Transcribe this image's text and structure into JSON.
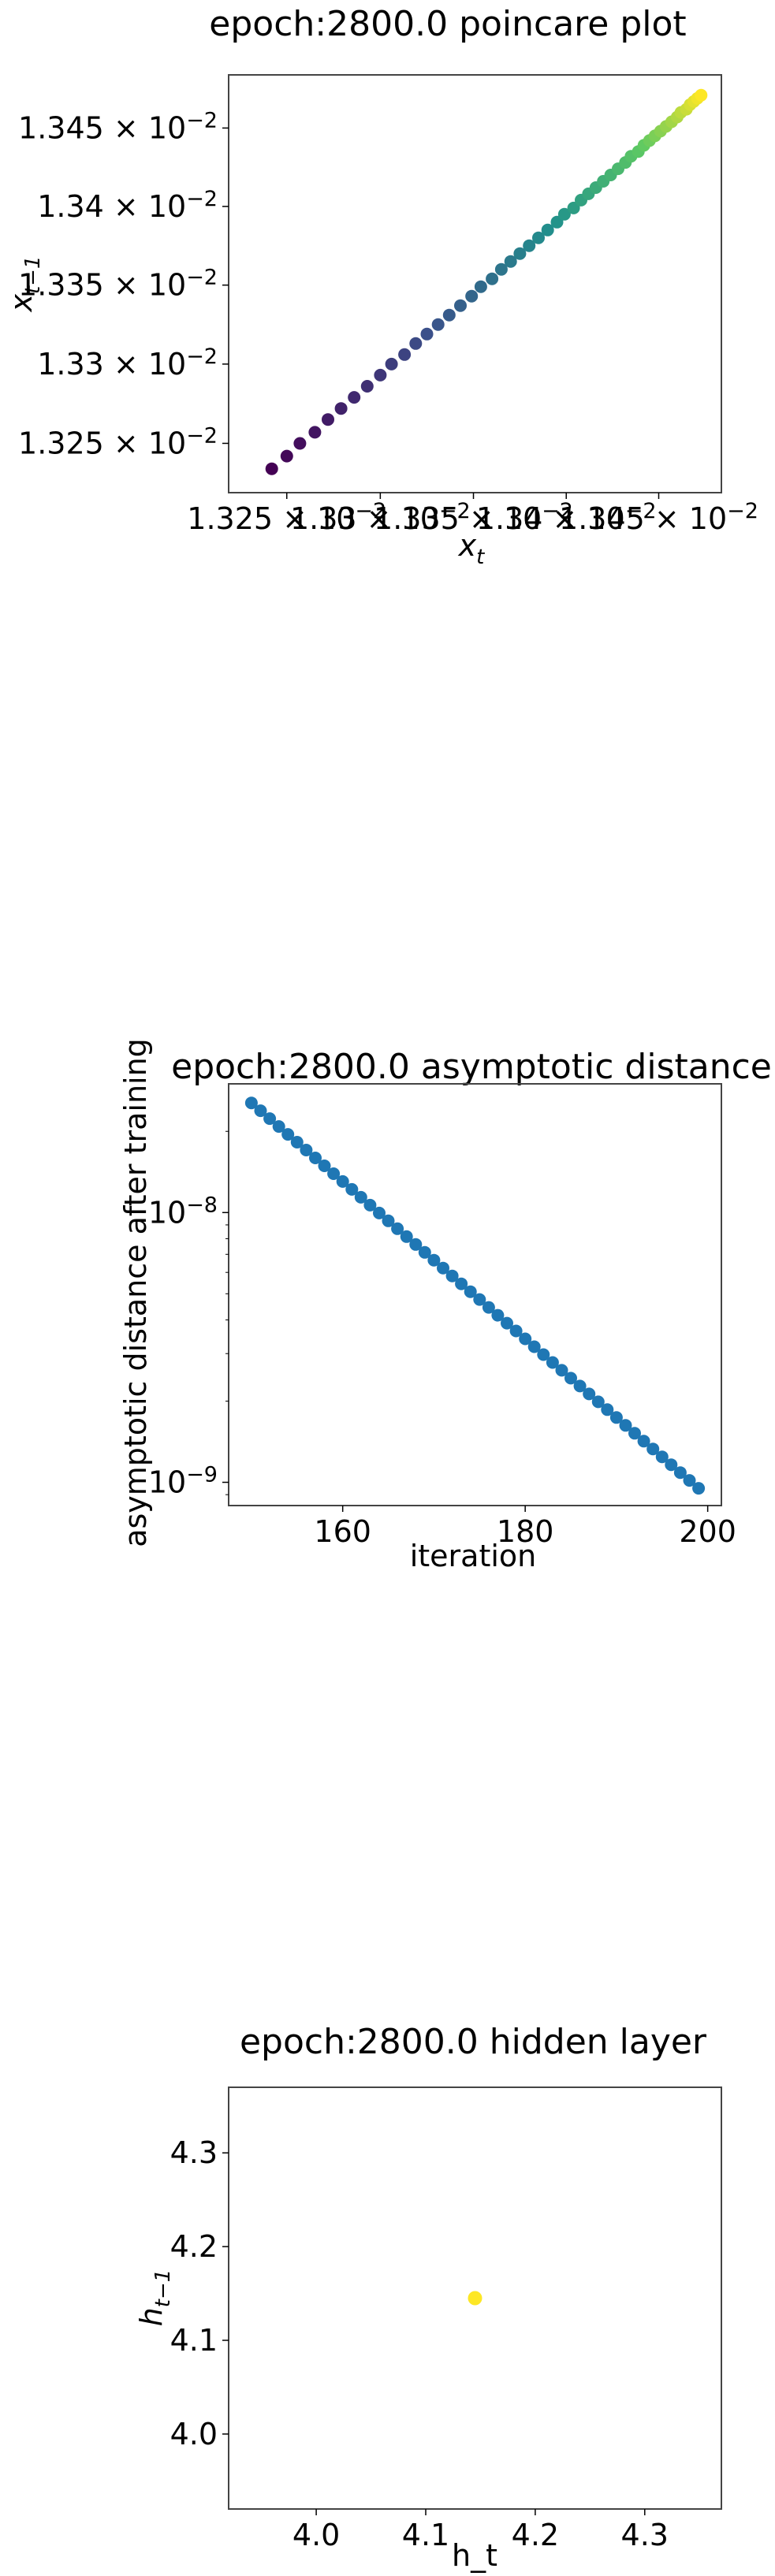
{
  "chart_data": [
    {
      "type": "scatter",
      "title": "epoch:2800.0 poincare plot",
      "xlabel_main": "x",
      "xlabel_sub": "t",
      "ylabel_main": "x",
      "ylabel_sub": "t−1",
      "x_scale": "log",
      "y_scale": "log",
      "xlim": [
        0.013219,
        0.013484
      ],
      "ylim": [
        0.013219,
        0.013484
      ],
      "x_ticks": [
        {
          "value": 0.01325,
          "mantissa": "1.325"
        },
        {
          "value": 0.0133,
          "mantissa": "1.33"
        },
        {
          "value": 0.01335,
          "mantissa": "1.335"
        },
        {
          "value": 0.0134,
          "mantissa": "1.34"
        },
        {
          "value": 0.01345,
          "mantissa": "1.345"
        }
      ],
      "y_ticks": [
        {
          "value": 0.01325,
          "mantissa": "1.325"
        },
        {
          "value": 0.0133,
          "mantissa": "1.33"
        },
        {
          "value": 0.01335,
          "mantissa": "1.335"
        },
        {
          "value": 0.0134,
          "mantissa": "1.34"
        },
        {
          "value": 0.01345,
          "mantissa": "1.345"
        }
      ],
      "tick_times": "×",
      "tick_base": "10",
      "tick_exponent": "−2",
      "colormap": "viridis",
      "grid": false,
      "points": [
        [
          0.013242,
          0.013234
        ],
        [
          0.01325,
          0.013242
        ],
        [
          0.013257,
          0.01325
        ],
        [
          0.013265,
          0.013257
        ],
        [
          0.013272,
          0.013265
        ],
        [
          0.013279,
          0.013272
        ],
        [
          0.013286,
          0.013279
        ],
        [
          0.013293,
          0.013286
        ],
        [
          0.0133,
          0.013293
        ],
        [
          0.013306,
          0.0133
        ],
        [
          0.013313,
          0.013306
        ],
        [
          0.013319,
          0.013313
        ],
        [
          0.013325,
          0.013319
        ],
        [
          0.013331,
          0.013325
        ],
        [
          0.013337,
          0.013331
        ],
        [
          0.013343,
          0.013337
        ],
        [
          0.013349,
          0.013343
        ],
        [
          0.013354,
          0.013349
        ],
        [
          0.01336,
          0.013354
        ],
        [
          0.013365,
          0.01336
        ],
        [
          0.01337,
          0.013365
        ],
        [
          0.013375,
          0.01337
        ],
        [
          0.01338,
          0.013375
        ],
        [
          0.013385,
          0.01338
        ],
        [
          0.01339,
          0.013385
        ],
        [
          0.013395,
          0.01339
        ],
        [
          0.013399,
          0.013395
        ],
        [
          0.013404,
          0.013399
        ],
        [
          0.013408,
          0.013404
        ],
        [
          0.013412,
          0.013408
        ],
        [
          0.013416,
          0.013412
        ],
        [
          0.01342,
          0.013416
        ],
        [
          0.013424,
          0.01342
        ],
        [
          0.013428,
          0.013424
        ],
        [
          0.013432,
          0.013428
        ],
        [
          0.013435,
          0.013432
        ],
        [
          0.013439,
          0.013435
        ],
        [
          0.013442,
          0.013439
        ],
        [
          0.013445,
          0.013442
        ],
        [
          0.013448,
          0.013445
        ],
        [
          0.013451,
          0.013448
        ],
        [
          0.013454,
          0.013451
        ],
        [
          0.013457,
          0.013454
        ],
        [
          0.01346,
          0.013457
        ],
        [
          0.013462,
          0.01346
        ],
        [
          0.013465,
          0.013462
        ],
        [
          0.013467,
          0.013465
        ],
        [
          0.013469,
          0.013467
        ],
        [
          0.013471,
          0.013469
        ],
        [
          0.013473,
          0.013471
        ]
      ]
    },
    {
      "type": "scatter",
      "title": "epoch:2800.0 asymptotic distance",
      "xlabel": "iteration",
      "ylabel": "asymptotic distance after training",
      "x_scale": "linear",
      "y_scale": "log",
      "xlim": [
        147.5,
        201.5
      ],
      "ylim": [
        8.2e-10,
        3e-08
      ],
      "x_ticks": [
        {
          "value": 160,
          "label": "160"
        },
        {
          "value": 180,
          "label": "180"
        },
        {
          "value": 200,
          "label": "200"
        }
      ],
      "y_ticks": [
        {
          "value": 1e-08,
          "base": "10",
          "exponent": "−8"
        },
        {
          "value": 1e-09,
          "base": "10",
          "exponent": "−9"
        }
      ],
      "color": "#1f77b4",
      "grid": false,
      "x_start": 150,
      "x_end": 199,
      "y_start": 2.55e-08,
      "y_end": 9.5e-10
    },
    {
      "type": "scatter",
      "title": "epoch:2800.0 hidden layer",
      "xlabel": "h_t",
      "ylabel_main": "h",
      "ylabel_sub": "t−1",
      "x_scale": "linear",
      "y_scale": "linear",
      "xlim": [
        3.92,
        4.37
      ],
      "ylim": [
        3.92,
        4.37
      ],
      "x_ticks": [
        "4.0",
        "4.1",
        "4.2",
        "4.3"
      ],
      "y_ticks": [
        "4.0",
        "4.1",
        "4.2",
        "4.3"
      ],
      "color": "#fde725",
      "grid": false,
      "points": [
        [
          4.145,
          4.145
        ]
      ]
    }
  ]
}
